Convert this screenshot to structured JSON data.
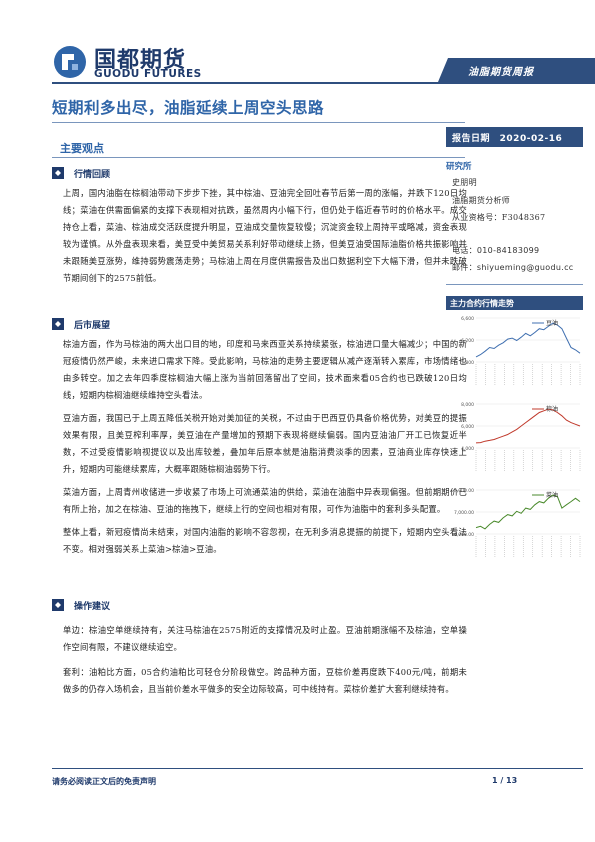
{
  "header": {
    "logo_cn": "国都期货",
    "logo_en": "GUODU FUTURES",
    "report_type": "油脂期货周报"
  },
  "title": "短期利多出尽，油脂延续上周空头思路",
  "section": "主要观点",
  "subsections": [
    {
      "label": "行情回顾",
      "paragraphs": [
        "上周，国内油脂在棕榈油带动下步步下挫，其中棕油、豆油完全回吐春节后第一周的涨幅，并跌下120日均线；菜油在供需面偏紧的支撑下表现相对抗跌，虽然周内小幅下行，但仍处于临近春节时的价格水平。成交持仓上看，菜油、棕油成交活跃度提升明显，豆油成交量恢复较慢；沉淀资金较上周持平或略减，资金表现较为谨慎。从外盘表现来看，美豆受中美贸易关系利好带动继续上扬，但美豆油受国际油脂价格共振影响并未跟随美豆涨势，维持弱势震荡走势；马棕油上周在月度供需报告及出口数据利空下大幅下滑，但并未跌破节期间创下的2575前低。"
      ]
    },
    {
      "label": "后市展望",
      "paragraphs": [
        "棕油方面，作为马棕油的两大出口目的地，印度和马来西亚关系持续紧张，棕油进口量大幅减少；中国的新冠疫情仍然严峻，未来进口需求下降。受此影响，马棕油的走势主要逻辑从减产逐渐转入累库，市场情绪也由多转空。加之去年四季度棕榈油大幅上涨为当前回落留出了空间，技术面来看05合约也已跌破120日均线，短期内棕榈油继续维持空头看法。",
        "豆油方面，我国已于上周五降低关税开始对美加征的关税，不过由于巴西豆仍具备价格优势，对美豆的提振效果有限，且美豆榨利率厚，美豆油在产量增加的预期下表现将继续偏弱。国内豆油油厂开工已恢复近半数，不过受疫情影响视提议以及出库较差，叠加年后原本就是油脂消费淡季的因素，豆油商业库存快速上升，短期内可能继续累库，大概率跟随棕榈油弱势下行。",
        "菜油方面，上周青州收储进一步收紧了市场上可流通菜油的供给，菜油在油脂中异表现偏强。但前期期价已有所上抬，加之在棕油、豆油的拖拽下，继续上行的空间也相对有限，可作为油脂中的套利多头配置。",
        "整体上看，新冠疫情尚未结束，对国内油脂的影响不容忽视，在无利多消息提振的前提下，短期内空头看法不变。相对强弱关系上菜油>棕油>豆油。"
      ]
    },
    {
      "label": "操作建议",
      "paragraphs": [
        "单边：棕油空单继续持有，关注马棕油在2575附近的支撑情况及时止盈。豆油前期涨幅不及棕油，空单操作空间有限，不建议继续追空。",
        "套利：油粕比方面，05合约油粕比可轻仓分阶段做空。跨品种方面，豆棕价差再度跌下400元/吨，前期未做多的仍存入场机会，且当前价差水平做多的安全边际较高，可中线持有。菜棕价差扩大套利继续持有。"
      ]
    }
  ],
  "sidebar": {
    "report_date_label": "报告日期",
    "report_date": "2020-02-16",
    "researcher_heading": "研究所",
    "researcher_name": "史朋明",
    "researcher_title": "油脂期货分析师",
    "qualification": "从业资格号：F3048367",
    "phone": "电话：010-84183099",
    "email": "邮件：shiyueming@guodu.cc",
    "chart_heading": "主力合约行情走势"
  },
  "chart_data": [
    {
      "type": "line",
      "series": [
        {
          "name": "豆油",
          "values": [
            5900,
            5950,
            6020,
            6100,
            6080,
            6150,
            6200,
            6280,
            6300,
            6250,
            6320,
            6400,
            6350,
            6420,
            6500,
            6480,
            6550,
            6620,
            6580,
            6500,
            6300,
            6100,
            6050,
            5980
          ]
        }
      ],
      "yticks": [
        "5,800",
        "6,200",
        "6,600"
      ],
      "color": "#3f6fb0"
    },
    {
      "type": "line",
      "series": [
        {
          "name": "棕油",
          "values": [
            4700,
            4720,
            4800,
            4850,
            4900,
            5000,
            5100,
            5200,
            5350,
            5500,
            5700,
            5900,
            6100,
            6300,
            6500,
            6600,
            6700,
            6650,
            6500,
            6300,
            6050,
            5900,
            5800,
            5700
          ]
        }
      ],
      "yticks": [
        "4,000",
        "6,000",
        "8,000"
      ],
      "color": "#c0392b"
    },
    {
      "type": "line",
      "series": [
        {
          "name": "菜油",
          "values": [
            7500,
            7520,
            7480,
            7550,
            7600,
            7580,
            7650,
            7700,
            7680,
            7750,
            7720,
            7800,
            7780,
            7850,
            7900,
            7880,
            7950,
            8000,
            7980,
            7800,
            7850,
            7900,
            7950,
            7900
          ]
        }
      ],
      "yticks": [
        "6,000.00",
        "7,000.00",
        "8,000.00"
      ],
      "color": "#4a8a2c"
    }
  ],
  "footer": {
    "disclaimer": "请务必阅读正文后的免责声明",
    "page": "1 / 13"
  }
}
